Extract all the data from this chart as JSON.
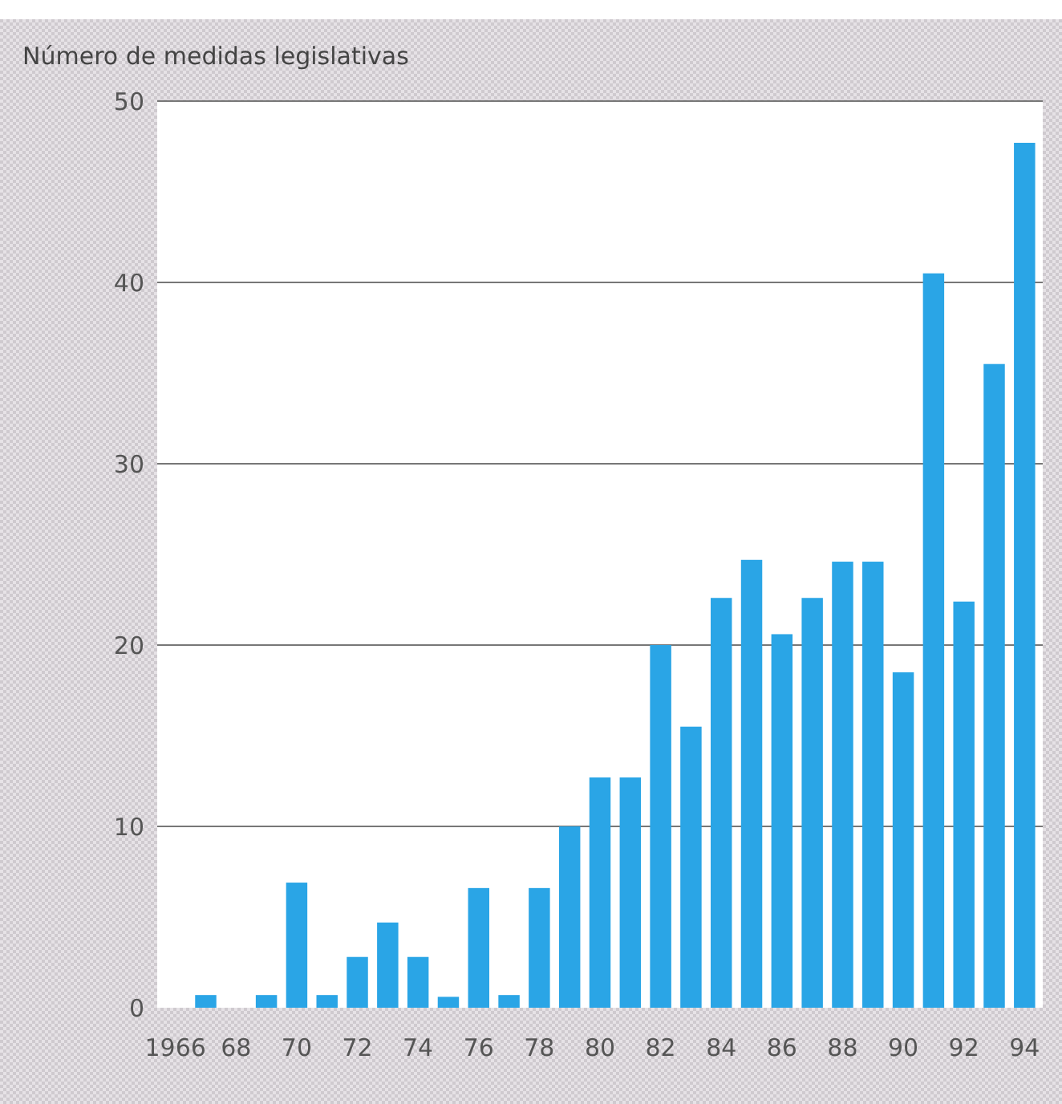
{
  "chart_data": {
    "type": "bar",
    "ylabel": "Número de medidas legislativas",
    "categories": [
      "1966",
      null,
      "68",
      null,
      "70",
      null,
      "72",
      null,
      "74",
      null,
      "76",
      null,
      "78",
      null,
      "80",
      null,
      "82",
      null,
      "84",
      null,
      "86",
      null,
      "88",
      null,
      "90",
      null,
      "92",
      null,
      "94"
    ],
    "values": [
      0,
      0.7,
      0,
      0.7,
      6.9,
      0.7,
      2.8,
      4.7,
      2.8,
      0.6,
      6.6,
      0.7,
      6.6,
      10,
      12.7,
      12.7,
      20,
      15.5,
      22.6,
      24.7,
      20.6,
      22.6,
      24.6,
      24.6,
      18.5,
      40.5,
      22.4,
      35.5,
      47.7
    ],
    "color": "#2aa5e6",
    "ylim": [
      0,
      50
    ],
    "yticks": [
      0,
      10,
      20,
      30,
      40,
      50
    ],
    "grid": "y"
  }
}
